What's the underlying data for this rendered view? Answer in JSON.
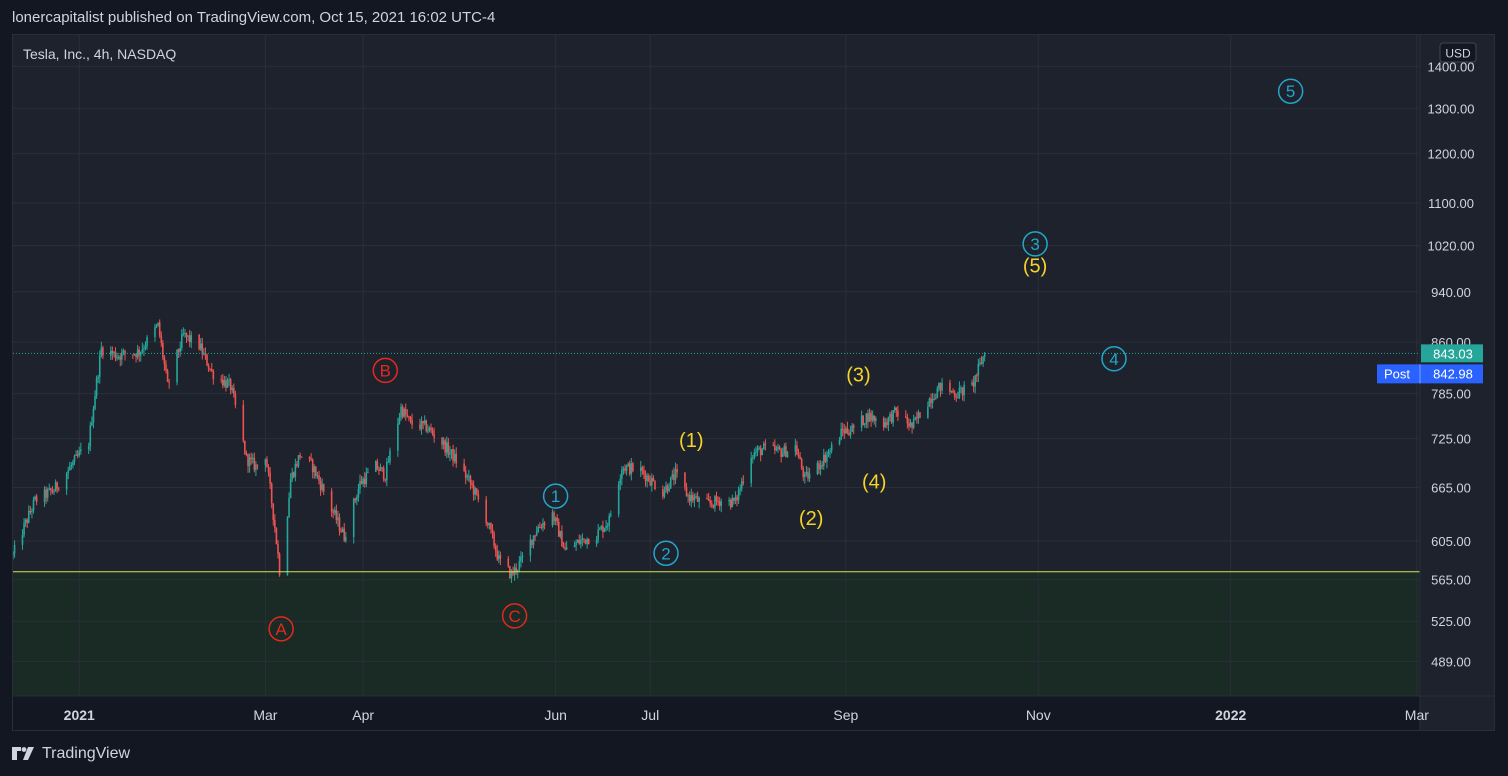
{
  "header": {
    "text": "lonercapitalist published on TradingView.com, Oct 15, 2021 16:02 UTC-4"
  },
  "footer": {
    "brand": "TradingView",
    "logo_icon": "tradingview-logo-icon"
  },
  "colors": {
    "background": "#1e222d",
    "grid": "#2a2e39",
    "up": "#26a69a",
    "down": "#ef5350",
    "support_line": "#d4e157",
    "last_price_line": "#26a69a",
    "wave_blue": "#22a6c9",
    "wave_yellow": "#f5d427",
    "wave_red": "#e0291f",
    "post_badge": "#2962ff"
  },
  "chart_data": {
    "type": "candlestick",
    "title": "Tesla, Inc., 4h, NASDAQ",
    "currency": "USD",
    "scale": "log",
    "ylim": [
      460,
      1480
    ],
    "xlim": [
      "2020-12-11",
      "2022-03-02"
    ],
    "grid": true,
    "y_ticks": [
      489,
      525,
      565,
      605,
      665,
      725,
      785,
      860,
      940,
      1020,
      1100,
      1200,
      1300,
      1400
    ],
    "y_tick_labels": [
      "489.00",
      "525.00",
      "565.00",
      "605.00",
      "665.00",
      "725.00",
      "785.00",
      "860.00",
      "940.00",
      "1020.00",
      "1100.00",
      "1200.00",
      "1300.00",
      "1400.00"
    ],
    "x_ticks": [
      {
        "date": "2021-01-01",
        "label": "2021",
        "bold": true
      },
      {
        "date": "2021-03-01",
        "label": "Mar"
      },
      {
        "date": "2021-04-01",
        "label": "Apr"
      },
      {
        "date": "2021-06-01",
        "label": "Jun"
      },
      {
        "date": "2021-07-01",
        "label": "Jul"
      },
      {
        "date": "2021-09-01",
        "label": "Sep"
      },
      {
        "date": "2021-11-01",
        "label": "Nov"
      },
      {
        "date": "2022-01-01",
        "label": "2022",
        "bold": true
      },
      {
        "date": "2022-03-01",
        "label": "Mar"
      }
    ],
    "close_path": [
      [
        "2020-12-11",
        590
      ],
      [
        "2020-12-18",
        650
      ],
      [
        "2020-12-24",
        662
      ],
      [
        "2021-01-04",
        720
      ],
      [
        "2021-01-08",
        850
      ],
      [
        "2021-01-13",
        840
      ],
      [
        "2021-01-20",
        845
      ],
      [
        "2021-01-26",
        885
      ],
      [
        "2021-01-29",
        795
      ],
      [
        "2021-02-03",
        870
      ],
      [
        "2021-02-08",
        855
      ],
      [
        "2021-02-12",
        815
      ],
      [
        "2021-02-18",
        795
      ],
      [
        "2021-02-23",
        700
      ],
      [
        "2021-02-26",
        690
      ],
      [
        "2021-03-01",
        705
      ],
      [
        "2021-03-04",
        620
      ],
      [
        "2021-03-06",
        560
      ],
      [
        "2021-03-09",
        675
      ],
      [
        "2021-03-12",
        705
      ],
      [
        "2021-03-16",
        690
      ],
      [
        "2021-03-22",
        640
      ],
      [
        "2021-03-26",
        610
      ],
      [
        "2021-03-31",
        670
      ],
      [
        "2021-04-05",
        690
      ],
      [
        "2021-04-08",
        680
      ],
      [
        "2021-04-13",
        765
      ],
      [
        "2021-04-16",
        745
      ],
      [
        "2021-04-21",
        740
      ],
      [
        "2021-04-26",
        720
      ],
      [
        "2021-04-30",
        700
      ],
      [
        "2021-05-05",
        670
      ],
      [
        "2021-05-10",
        630
      ],
      [
        "2021-05-14",
        585
      ],
      [
        "2021-05-18",
        570
      ],
      [
        "2021-05-21",
        583
      ],
      [
        "2021-05-26",
        618
      ],
      [
        "2021-05-31",
        635
      ],
      [
        "2021-06-04",
        595
      ],
      [
        "2021-06-09",
        605
      ],
      [
        "2021-06-14",
        612
      ],
      [
        "2021-06-18",
        628
      ],
      [
        "2021-06-22",
        690
      ],
      [
        "2021-06-28",
        685
      ],
      [
        "2021-07-05",
        660
      ],
      [
        "2021-07-09",
        680
      ],
      [
        "2021-07-13",
        655
      ],
      [
        "2021-07-19",
        645
      ],
      [
        "2021-07-23",
        650
      ],
      [
        "2021-07-28",
        648
      ],
      [
        "2021-08-02",
        705
      ],
      [
        "2021-08-06",
        712
      ],
      [
        "2021-08-12",
        708
      ],
      [
        "2021-08-16",
        715
      ],
      [
        "2021-08-19",
        675
      ],
      [
        "2021-08-23",
        690
      ],
      [
        "2021-08-27",
        710
      ],
      [
        "2021-08-31",
        735
      ],
      [
        "2021-09-03",
        737
      ],
      [
        "2021-09-08",
        755
      ],
      [
        "2021-09-13",
        745
      ],
      [
        "2021-09-17",
        760
      ],
      [
        "2021-09-22",
        740
      ],
      [
        "2021-09-27",
        775
      ],
      [
        "2021-10-01",
        795
      ],
      [
        "2021-10-06",
        785
      ],
      [
        "2021-10-11",
        795
      ],
      [
        "2021-10-15",
        843
      ]
    ],
    "horizontal_lines": [
      {
        "name": "support",
        "price": 573
      },
      {
        "name": "last-price",
        "price": 843.03,
        "dotted": true
      }
    ],
    "price_labels": [
      {
        "name": "last-price-label",
        "price": 843.03,
        "text": "843.03"
      },
      {
        "name": "post-price-label",
        "price": 842.98,
        "text": "842.98",
        "tag": "Post"
      }
    ],
    "wave_labels": [
      {
        "name": "wave-A",
        "text": "A",
        "style": "circle",
        "color": "red",
        "date": "2021-03-06",
        "price": 518
      },
      {
        "name": "wave-B",
        "text": "B",
        "style": "circle",
        "color": "red",
        "date": "2021-04-08",
        "price": 818
      },
      {
        "name": "wave-C",
        "text": "C",
        "style": "circle",
        "color": "red",
        "date": "2021-05-19",
        "price": 530
      },
      {
        "name": "wave-1",
        "text": "1",
        "style": "circle",
        "color": "blue",
        "date": "2021-06-01",
        "price": 655
      },
      {
        "name": "wave-2",
        "text": "2",
        "style": "circle",
        "color": "blue",
        "date": "2021-07-06",
        "price": 592
      },
      {
        "name": "wave-3",
        "text": "3",
        "style": "circle",
        "color": "blue",
        "date": "2021-10-31",
        "price": 1023
      },
      {
        "name": "wave-4",
        "text": "4",
        "style": "circle",
        "color": "blue",
        "date": "2021-11-25",
        "price": 835
      },
      {
        "name": "wave-5",
        "text": "5",
        "style": "circle",
        "color": "blue",
        "date": "2022-01-20",
        "price": 1340
      },
      {
        "name": "wave-paren-1",
        "text": "(1)",
        "style": "paren",
        "color": "yellow",
        "date": "2021-07-14",
        "price": 723
      },
      {
        "name": "wave-paren-2",
        "text": "(2)",
        "style": "paren",
        "color": "yellow",
        "date": "2021-08-21",
        "price": 630
      },
      {
        "name": "wave-paren-3",
        "text": "(3)",
        "style": "paren",
        "color": "yellow",
        "date": "2021-09-05",
        "price": 812
      },
      {
        "name": "wave-paren-4",
        "text": "(4)",
        "style": "paren",
        "color": "yellow",
        "date": "2021-09-10",
        "price": 672
      },
      {
        "name": "wave-paren-5",
        "text": "(5)",
        "style": "paren",
        "color": "yellow",
        "date": "2021-10-31",
        "price": 985
      }
    ]
  }
}
